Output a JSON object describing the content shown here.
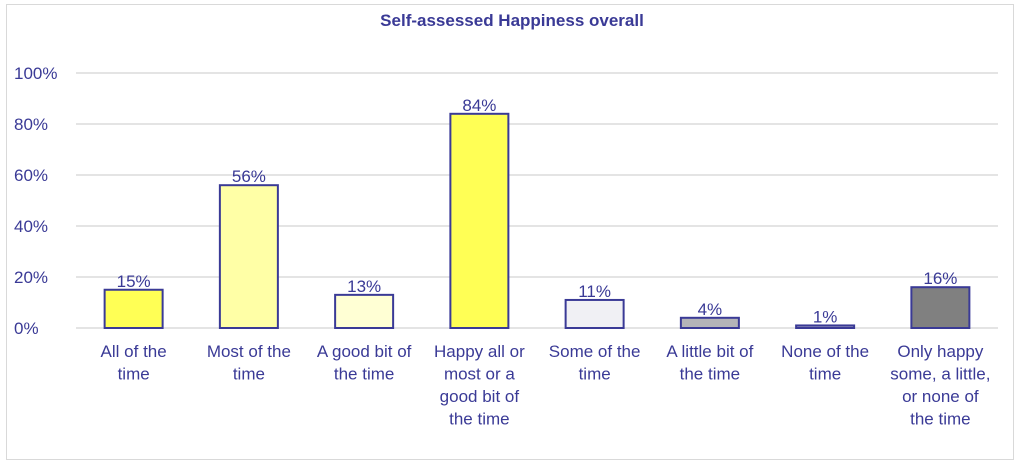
{
  "chart_data": {
    "type": "bar",
    "title": "Self-assessed Happiness overall",
    "xlabel": "",
    "ylabel": "",
    "ylim": [
      0,
      100
    ],
    "yticks": [
      "0%",
      "20%",
      "40%",
      "60%",
      "80%",
      "100%"
    ],
    "grid": true,
    "legend": "none",
    "categories": [
      [
        "All of the",
        "time"
      ],
      [
        "Most of the",
        "time"
      ],
      [
        "A good bit of",
        "the time"
      ],
      [
        "Happy all or",
        "most or a",
        "good bit of",
        "the time"
      ],
      [
        "Some of the",
        "time"
      ],
      [
        "A little bit of",
        "the time"
      ],
      [
        "None of the",
        "time"
      ],
      [
        "Only happy",
        "some, a little,",
        "or none of",
        "the time"
      ]
    ],
    "values": [
      15,
      56,
      13,
      84,
      11,
      4,
      1,
      16
    ],
    "data_labels": [
      "15%",
      "56%",
      "13%",
      "84%",
      "11%",
      "4%",
      "1%",
      "16%"
    ],
    "bar_colors": [
      "#ffff55",
      "#ffffa6",
      "#ffffd4",
      "#ffff55",
      "#f0f0f4",
      "#b4b4b8",
      "#a0a0c0",
      "#808080"
    ],
    "bar_outline_color": "#3a3a96",
    "text_color": "#3a3a96",
    "grid_color": "#dcdcdc"
  }
}
